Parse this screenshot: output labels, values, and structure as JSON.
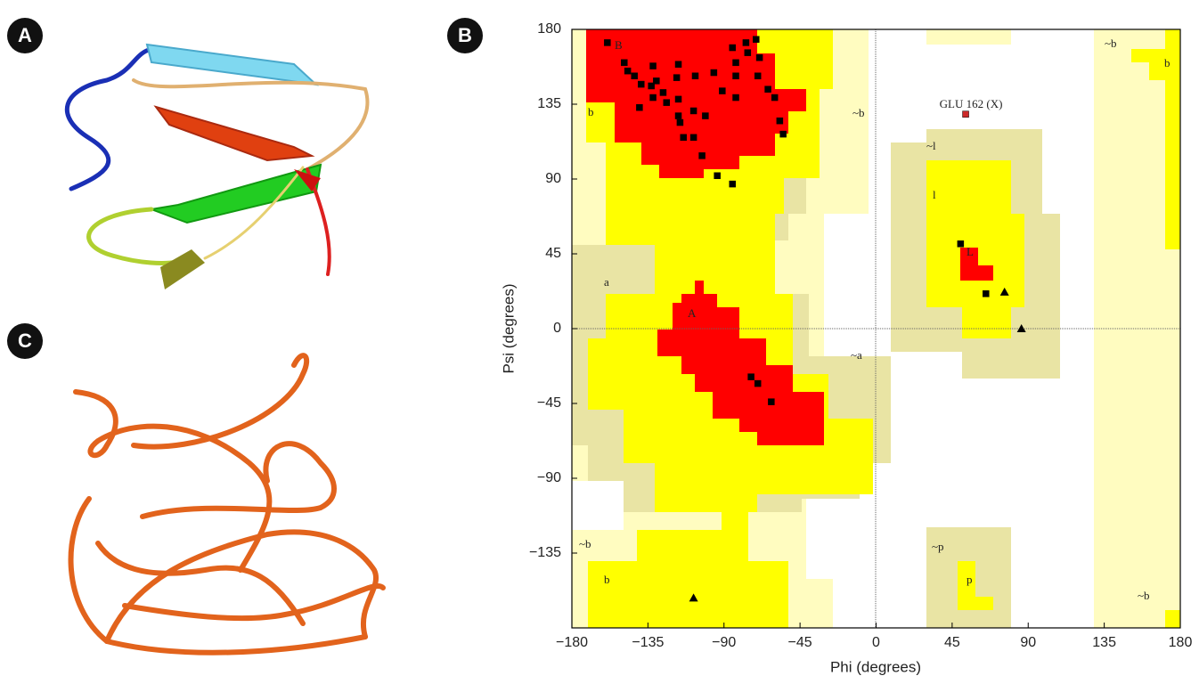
{
  "panel_labels": [
    "A",
    "B",
    "C"
  ],
  "chart_data": {
    "type": "scatter",
    "xlabel": "Phi (degrees)",
    "ylabel": "Psi (degrees)",
    "xlim": [
      -180,
      180
    ],
    "ylim": [
      -180,
      180
    ],
    "xticks": [
      {
        "value": -180,
        "label": "−180"
      },
      {
        "value": -135,
        "label": "−135"
      },
      {
        "value": -90,
        "label": "−90"
      },
      {
        "value": -45,
        "label": "−45"
      },
      0,
      45,
      90,
      135,
      180
    ],
    "yticks": [
      {
        "value": -135,
        "label": "−135"
      },
      {
        "value": -90,
        "label": "−90"
      },
      {
        "value": -45,
        "label": "−45"
      },
      0,
      45,
      90,
      135,
      180
    ],
    "region_labels": [
      "B",
      "b",
      "~b",
      "~l",
      "l",
      "L",
      "a",
      "A",
      "~a",
      "~b",
      "b",
      "~p",
      "p",
      "~b",
      "~b",
      "b"
    ],
    "series": [
      {
        "marker": "square",
        "color": "#000000",
        "x": [
          -159,
          -149,
          -147,
          -143,
          -139,
          -133,
          -130,
          -132,
          -126,
          -124,
          -117,
          -117,
          -116,
          -114,
          -108,
          -103,
          -94,
          -85,
          -107,
          -96,
          -91,
          -83,
          -83,
          -83,
          -85,
          -77,
          -71,
          -76,
          -69,
          -70,
          -64,
          -60,
          -57,
          -55,
          -108,
          -101,
          -118,
          -117,
          -132,
          -140,
          -74,
          -70,
          -62,
          50,
          65
        ],
        "values": [
          172,
          160,
          155,
          152,
          147,
          146,
          149,
          158,
          142,
          136,
          138,
          128,
          124,
          115,
          115,
          104,
          92,
          87,
          152,
          154,
          143,
          139,
          152,
          160,
          169,
          172,
          174,
          166,
          163,
          152,
          144,
          139,
          125,
          117,
          131,
          128,
          151,
          159,
          139,
          133,
          -29,
          -33,
          -44,
          51,
          21
        ]
      },
      {
        "marker": "triangle",
        "color": "#000000",
        "x": [
          76,
          86,
          -108
        ],
        "values": [
          22,
          0,
          -162
        ]
      },
      {
        "marker": "square",
        "color": "#cc2a2a",
        "x": [
          53
        ],
        "values": [
          129
        ],
        "labels": [
          "GLU 162 (X)"
        ]
      }
    ]
  }
}
